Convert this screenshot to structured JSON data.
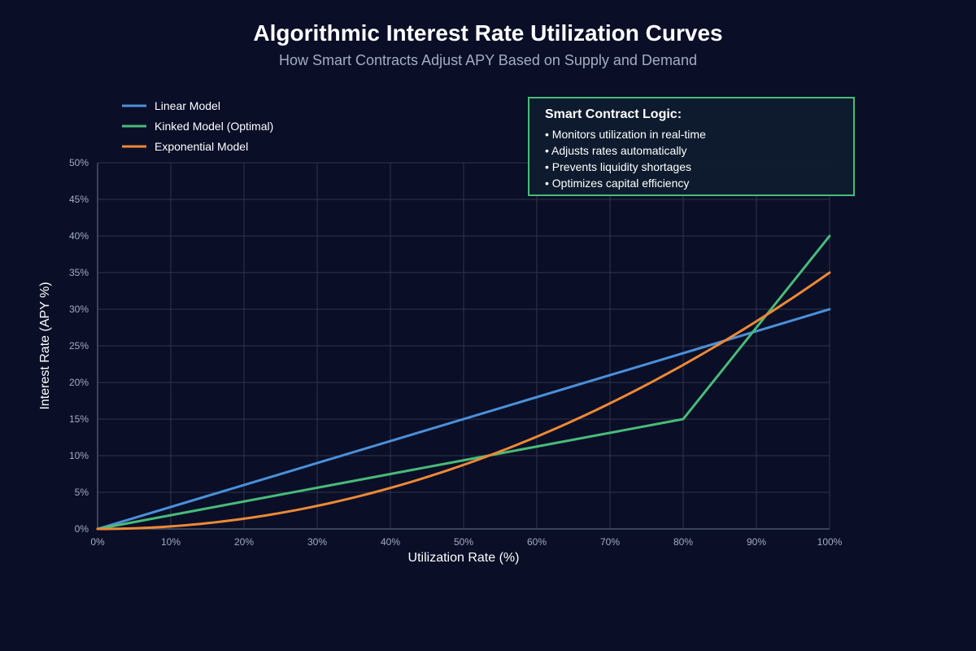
{
  "chart_data": {
    "type": "line",
    "title": "Algorithmic Interest Rate Utilization Curves",
    "subtitle": "How Smart Contracts Adjust APY Based on Supply and Demand",
    "xlabel": "Utilization Rate (%)",
    "ylabel": "Interest Rate (APY %)",
    "xlim": [
      0,
      100
    ],
    "ylim": [
      0,
      50
    ],
    "grid": true,
    "legend_position": "top-left",
    "x_ticks": [
      0,
      10,
      20,
      30,
      40,
      50,
      60,
      70,
      80,
      90,
      100
    ],
    "x_tick_labels": [
      "0%",
      "10%",
      "20%",
      "30%",
      "40%",
      "50%",
      "60%",
      "70%",
      "80%",
      "90%",
      "100%"
    ],
    "y_ticks": [
      0,
      5,
      10,
      15,
      20,
      25,
      30,
      35,
      40,
      45,
      50
    ],
    "y_tick_labels": [
      "0%",
      "5%",
      "10%",
      "15%",
      "20%",
      "25%",
      "30%",
      "35%",
      "40%",
      "45%",
      "50%"
    ],
    "series": [
      {
        "name": "Linear Model",
        "color": "#4a90d9",
        "x": [
          0,
          10,
          20,
          30,
          40,
          50,
          60,
          70,
          80,
          90,
          100
        ],
        "y": [
          0,
          3,
          6,
          9,
          12,
          15,
          18,
          21,
          24,
          27,
          30
        ]
      },
      {
        "name": "Kinked Model (Optimal)",
        "color": "#48bb78",
        "x": [
          0,
          10,
          20,
          30,
          40,
          50,
          60,
          70,
          80,
          90,
          100
        ],
        "y": [
          0,
          1.875,
          3.75,
          5.625,
          7.5,
          9.375,
          11.25,
          13.125,
          15,
          27.5,
          40
        ]
      },
      {
        "name": "Exponential Model",
        "color": "#ed8936",
        "x": [
          0,
          10,
          20,
          30,
          40,
          50,
          60,
          70,
          80,
          90,
          100
        ],
        "y": [
          0,
          0.35,
          1.4,
          3.15,
          5.6,
          8.75,
          12.6,
          17.15,
          22.4,
          28.35,
          35
        ]
      }
    ],
    "annotation": {
      "title": "Smart Contract Logic:",
      "border_color": "#48bb78",
      "items": [
        "• Monitors utilization in real-time",
        "• Adjusts rates automatically",
        "• Prevents liquidity shortages",
        "• Optimizes capital efficiency"
      ]
    }
  }
}
